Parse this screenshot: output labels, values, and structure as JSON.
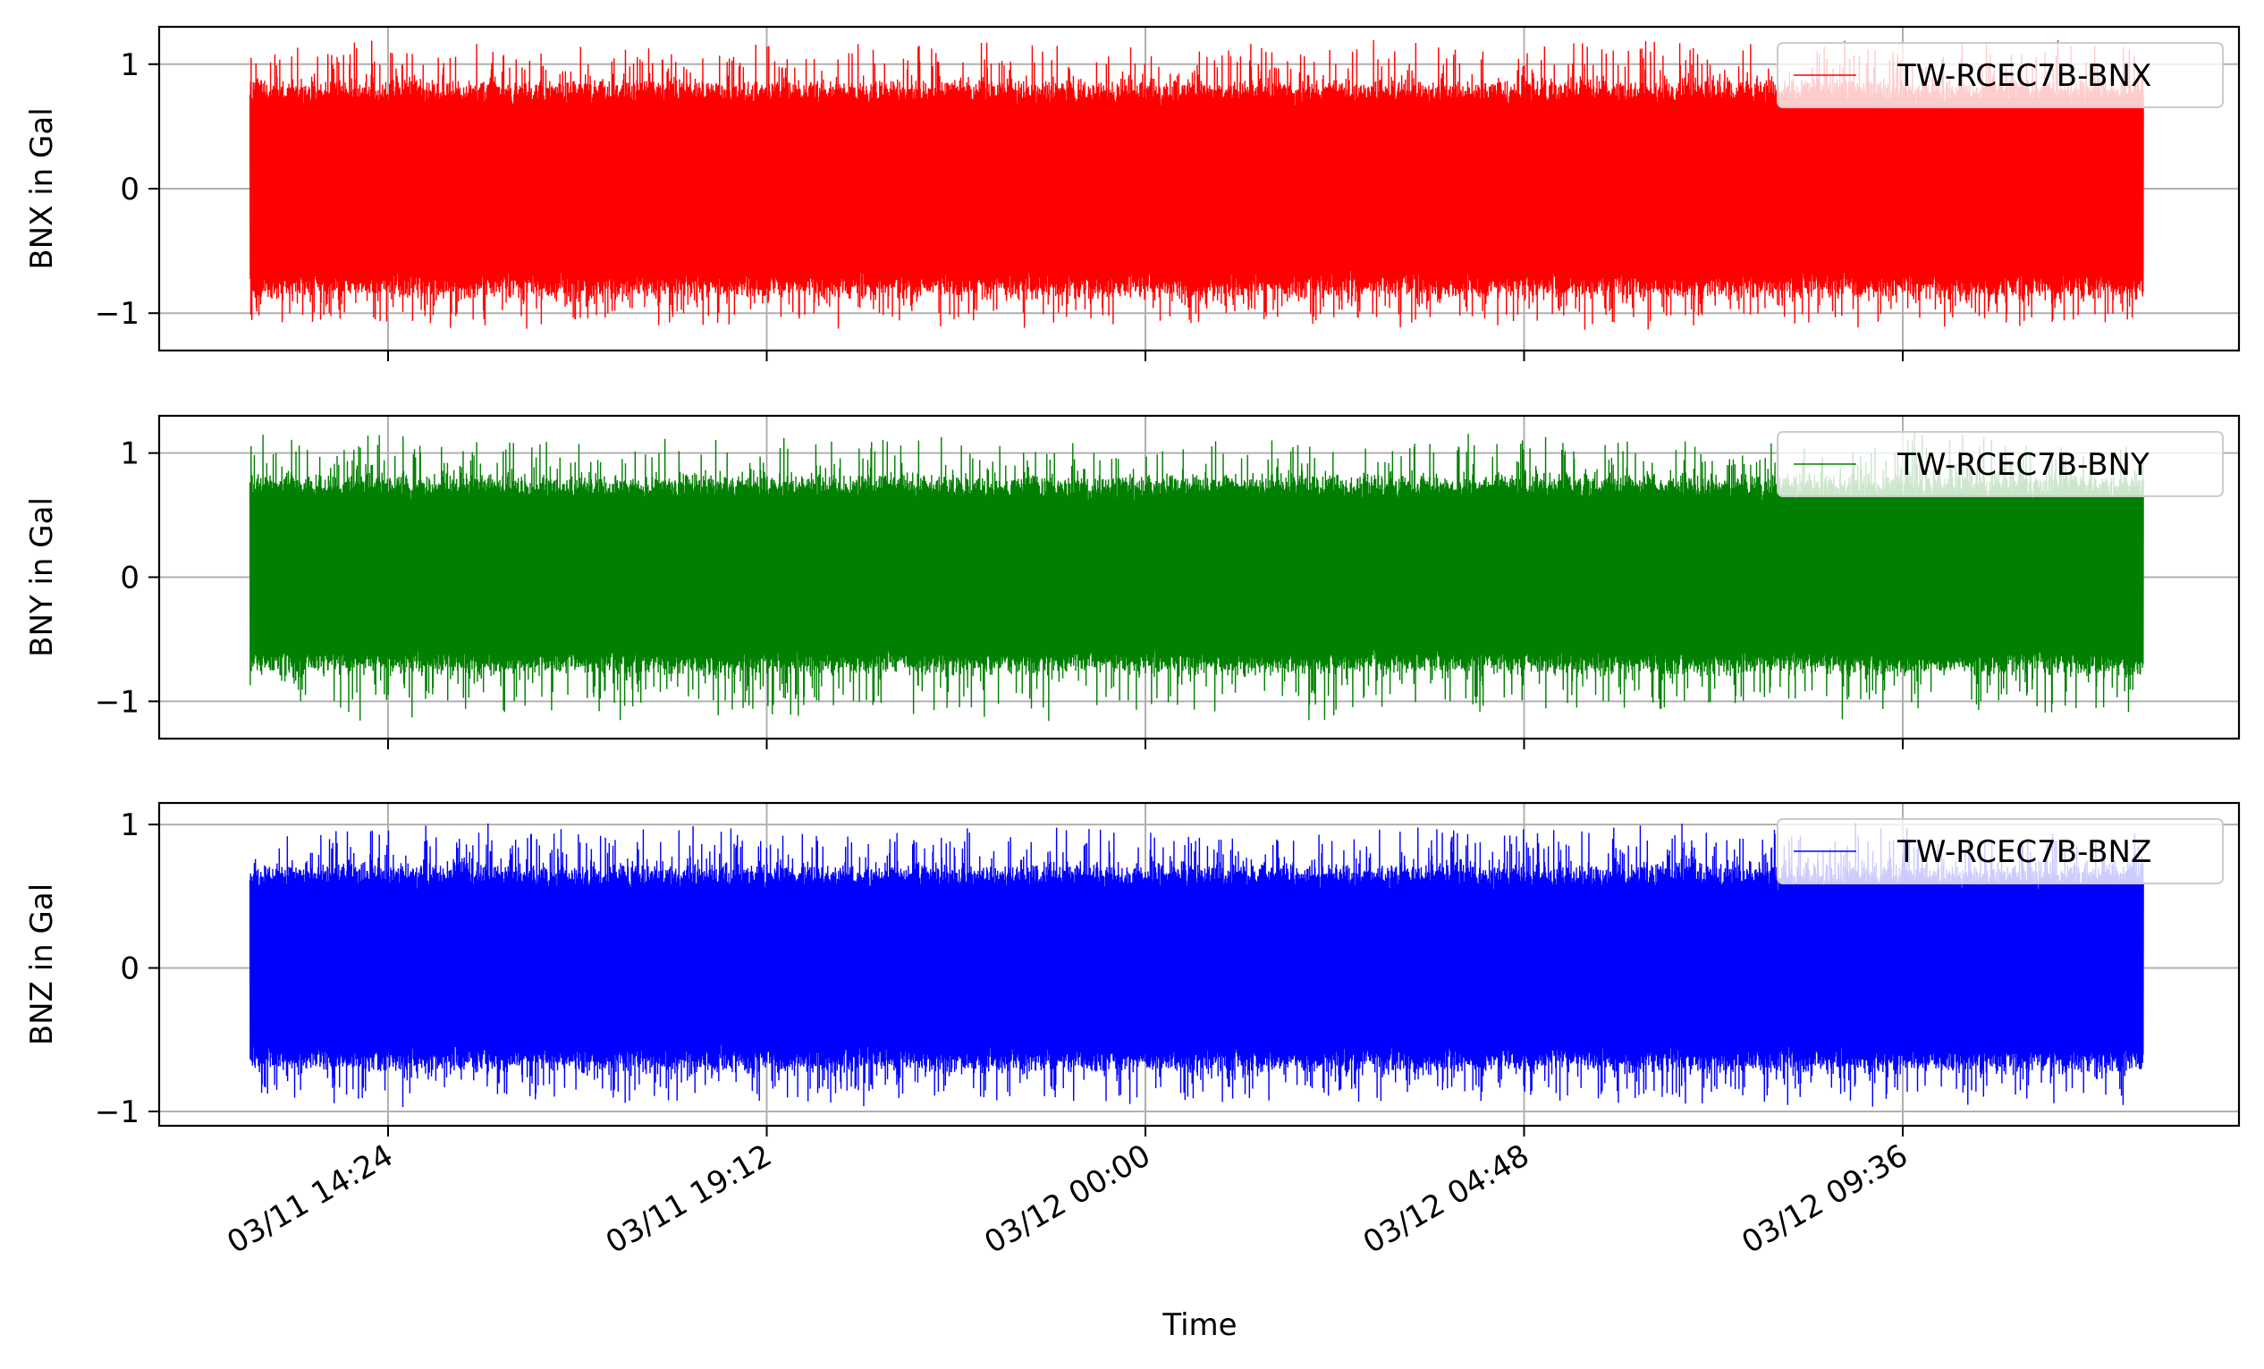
{
  "chart_data": {
    "type": "line",
    "shared_x": true,
    "xlabel": "Time",
    "x_range": [
      "03/11 12:39",
      "03/12 12:39"
    ],
    "x_ticks": [
      "03/11 14:24",
      "03/11 19:12",
      "03/12 00:00",
      "03/12 04:48",
      "03/12 09:36"
    ],
    "x_tick_rotation_deg": 30,
    "grid": true,
    "legend_placement": "upper right",
    "panels": [
      {
        "ylabel": "BNX in Gal",
        "ylim": [
          -1.3,
          1.3
        ],
        "y_ticks": [
          1,
          0,
          -1
        ],
        "y_tick_labels": [
          "1",
          "0",
          "−1"
        ],
        "series": [
          {
            "name": "TW-RCEC7B-BNX",
            "color": "#ff0000",
            "mean": 0,
            "dense_band": [
              -0.85,
              0.85
            ],
            "peak_range": [
              -1.15,
              1.22
            ]
          }
        ]
      },
      {
        "ylabel": "BNY in Gal",
        "ylim": [
          -1.3,
          1.3
        ],
        "y_ticks": [
          1,
          0,
          -1
        ],
        "y_tick_labels": [
          "1",
          "0",
          "−1"
        ],
        "series": [
          {
            "name": "TW-RCEC7B-BNY",
            "color": "#008000",
            "mean": 0,
            "dense_band": [
              -0.75,
              0.8
            ],
            "peak_range": [
              -1.18,
              1.18
            ]
          }
        ]
      },
      {
        "ylabel": "BNZ in Gal",
        "ylim": [
          -1.1,
          1.15
        ],
        "y_ticks": [
          1,
          0,
          -1
        ],
        "y_tick_labels": [
          "1",
          "0",
          "−1"
        ],
        "series": [
          {
            "name": "TW-RCEC7B-BNZ",
            "color": "#0000ff",
            "mean": 0,
            "dense_band": [
              -0.7,
              0.7
            ],
            "peak_range": [
              -0.98,
              1.04
            ]
          }
        ]
      }
    ]
  }
}
